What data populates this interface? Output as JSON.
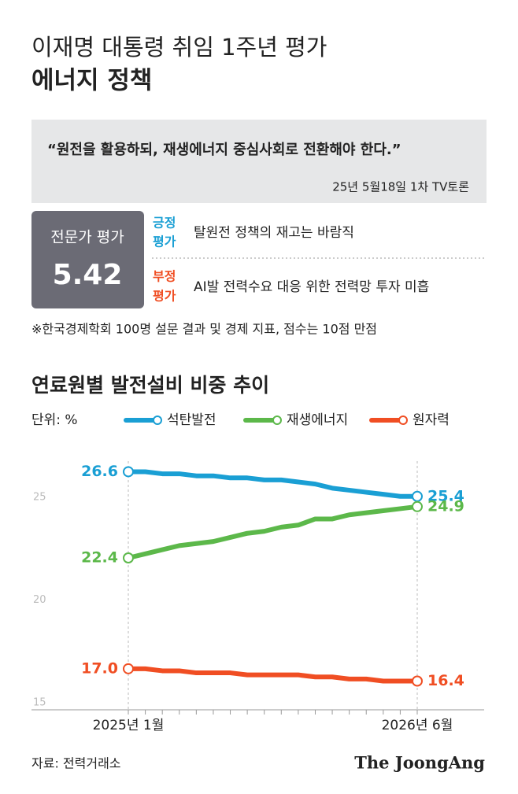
{
  "header": {
    "kicker": "이재명 대통령 취임 1주년 평가",
    "title": "에너지 정책"
  },
  "quote": {
    "text": "“원전을 활용하되, 재생에너지 중심사회로 전환해야 한다.”",
    "source": "25년 5월18일 1차 TV토론"
  },
  "evaluation": {
    "label": "전문가 평가",
    "score": "5.42",
    "positive": {
      "label": [
        "긍정",
        "평가"
      ],
      "text": "탈원전 정책의 재고는 바람직"
    },
    "negative": {
      "label": [
        "부정",
        "평가"
      ],
      "text": "AI발 전력수요 대응 위한 전력망 투자 미흡"
    }
  },
  "note": "※한국경제학회 100명 설문 결과 및 경제 지표, 점수는 10점 만점",
  "chart_data": {
    "type": "line",
    "title": "연료원별 발전설비 비중 추이",
    "unit": "단위: %",
    "categories": [
      "2025년 1월",
      null,
      null,
      null,
      null,
      null,
      null,
      null,
      null,
      null,
      null,
      null,
      null,
      null,
      null,
      null,
      null,
      "2026년 6월"
    ],
    "series": [
      {
        "name": "석탄발전",
        "color": "#1a9fd4",
        "values": [
          26.6,
          26.6,
          26.5,
          26.5,
          26.4,
          26.4,
          26.3,
          26.3,
          26.2,
          26.2,
          26.1,
          26.0,
          25.8,
          25.7,
          25.6,
          25.5,
          25.4,
          25.4
        ],
        "value_labels": [
          "26.6",
          null,
          null,
          null,
          null,
          null,
          null,
          null,
          null,
          null,
          null,
          null,
          null,
          null,
          null,
          null,
          null,
          "25.4"
        ]
      },
      {
        "name": "재생에너지",
        "color": "#5cb84a",
        "values": [
          22.4,
          22.6,
          22.8,
          23.0,
          23.1,
          23.2,
          23.4,
          23.6,
          23.7,
          23.9,
          24.0,
          24.3,
          24.3,
          24.5,
          24.6,
          24.7,
          24.8,
          24.9
        ],
        "value_labels": [
          "22.4",
          null,
          null,
          null,
          null,
          null,
          null,
          null,
          null,
          null,
          null,
          null,
          null,
          null,
          null,
          null,
          null,
          "24.9"
        ]
      },
      {
        "name": "원자력",
        "color": "#f04e23",
        "values": [
          17.0,
          17.0,
          16.9,
          16.9,
          16.8,
          16.8,
          16.8,
          16.7,
          16.7,
          16.7,
          16.7,
          16.6,
          16.6,
          16.5,
          16.5,
          16.4,
          16.4,
          16.4
        ],
        "value_labels": [
          "17.0",
          null,
          null,
          null,
          null,
          null,
          null,
          null,
          null,
          null,
          null,
          null,
          null,
          null,
          null,
          null,
          null,
          "16.4"
        ]
      }
    ],
    "ylim": [
      15,
      27.5
    ],
    "yticks": [
      15,
      20,
      25
    ],
    "grid": false
  },
  "footer": {
    "source": "자료: 전력거래소",
    "logo": "The JoongAng"
  }
}
